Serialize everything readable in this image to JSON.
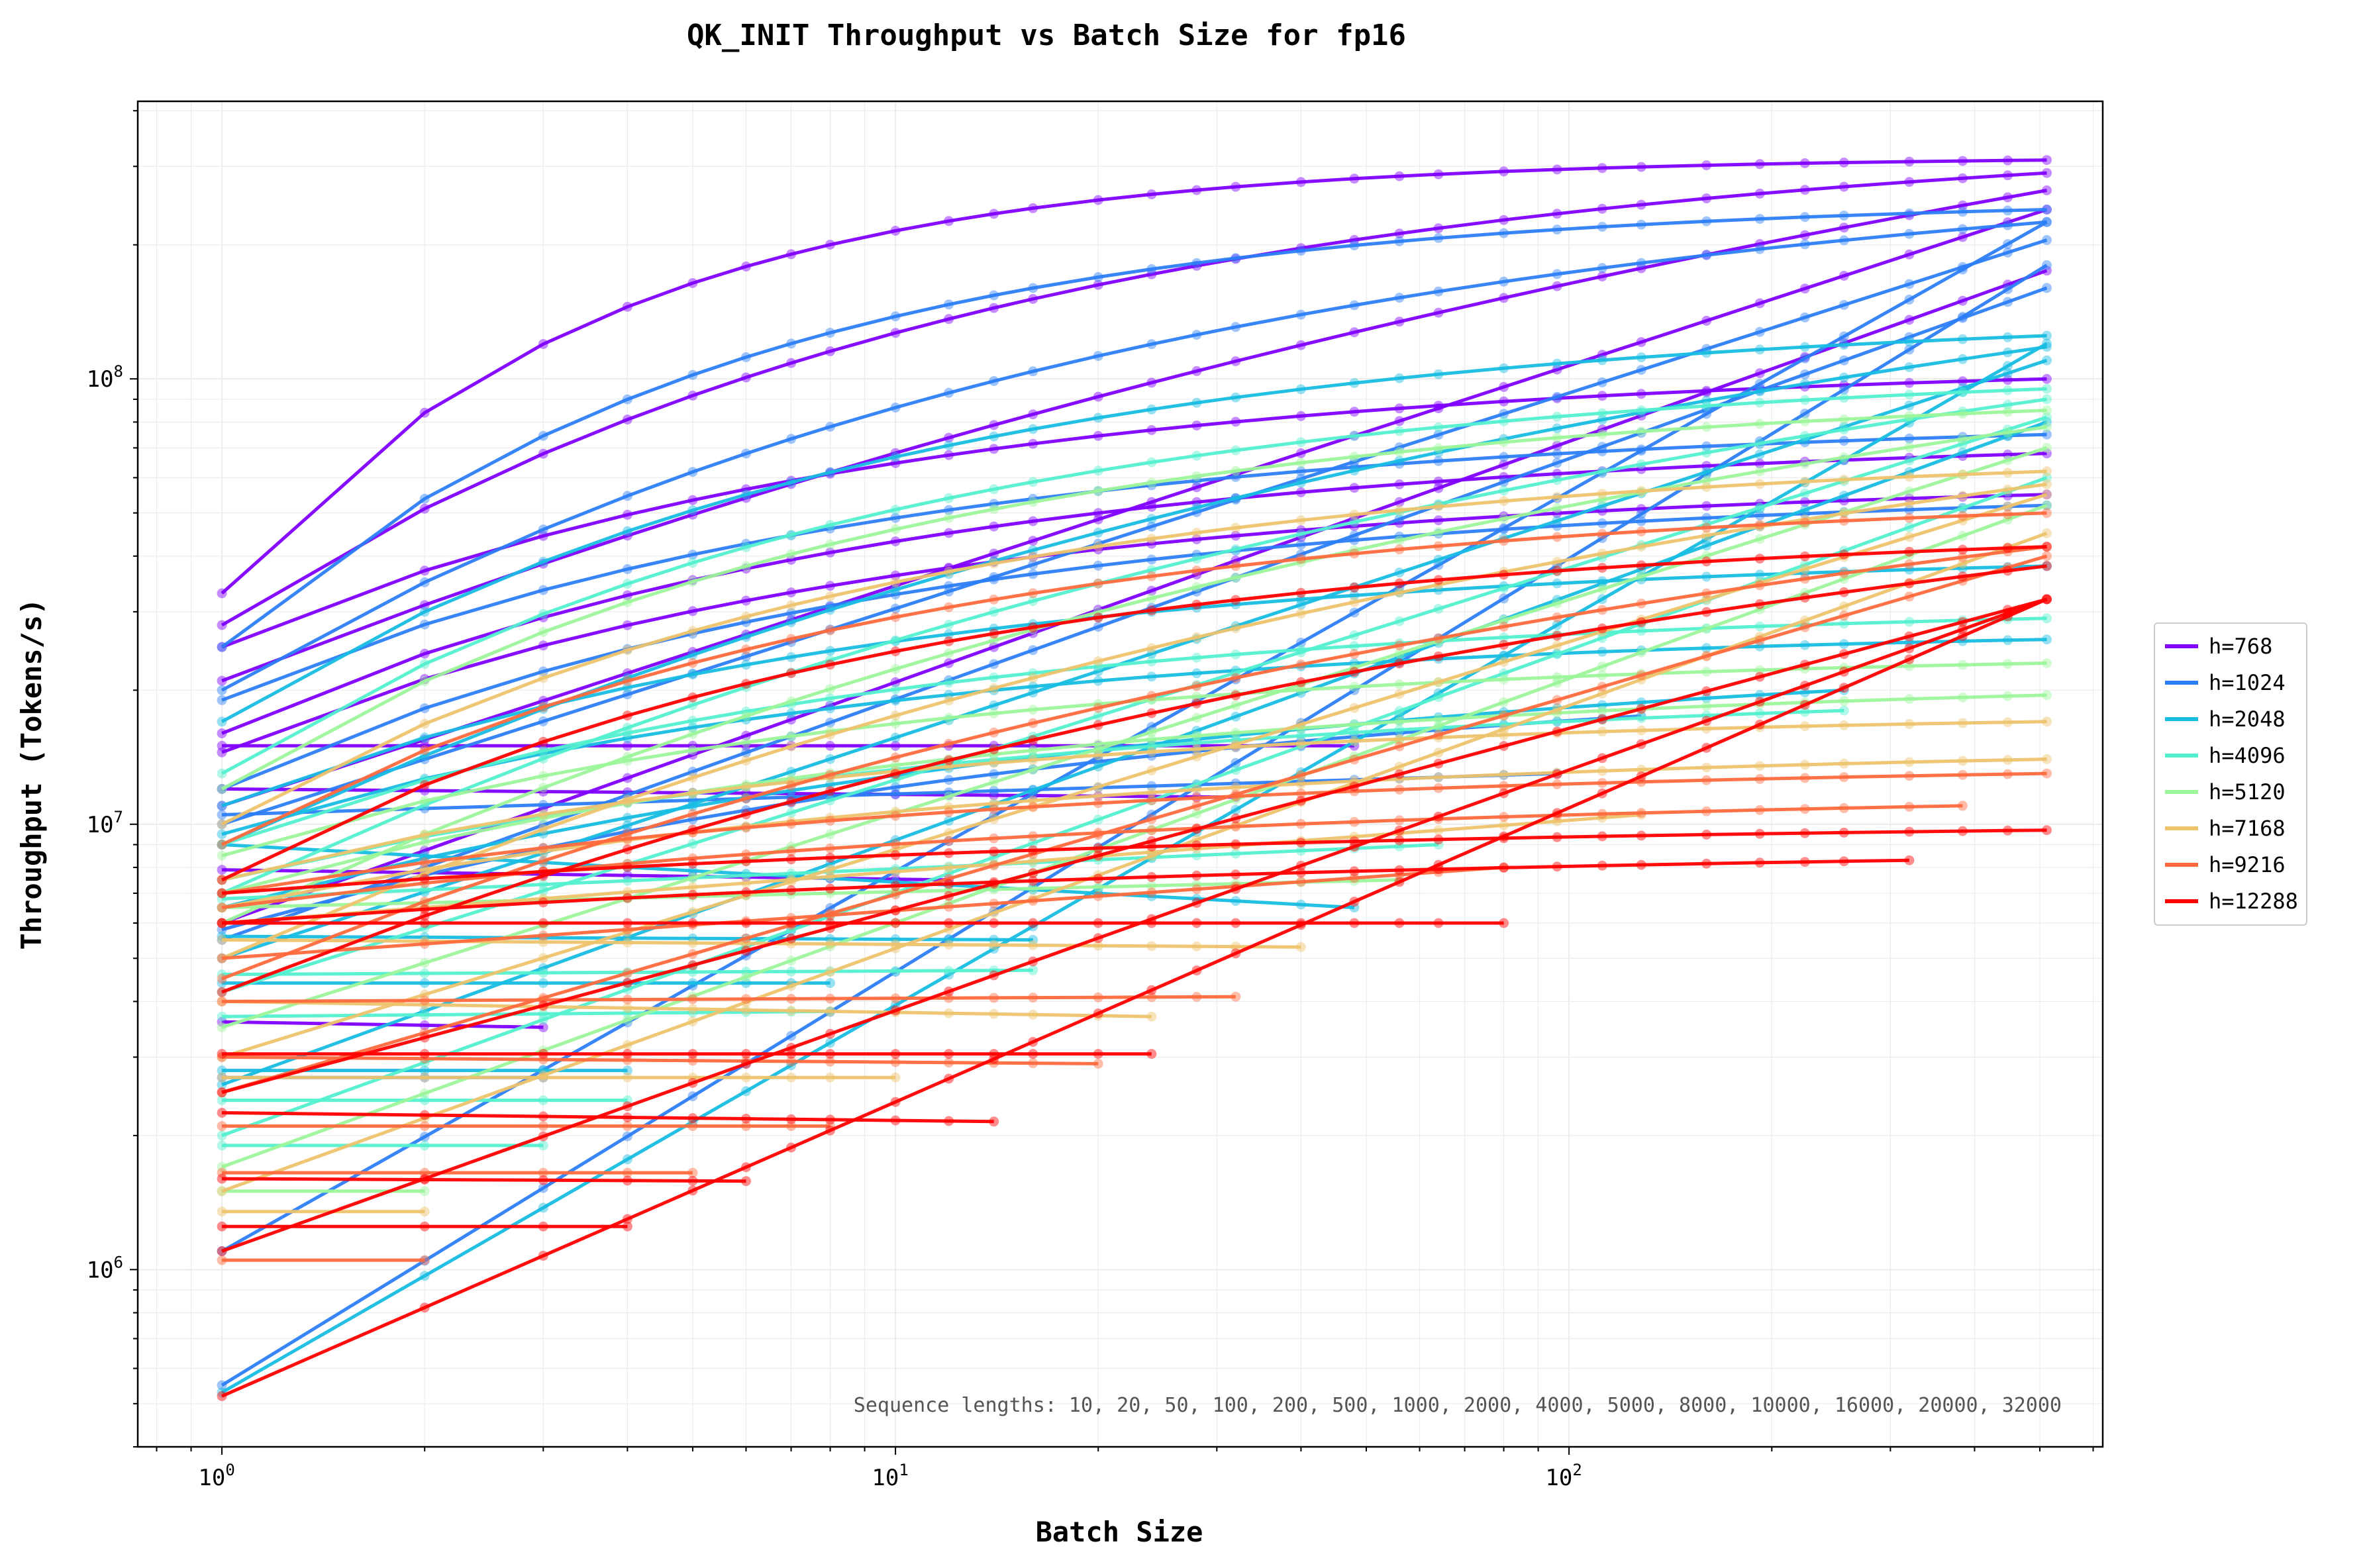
{
  "chart_data": {
    "type": "line",
    "title": "QK_INIT Throughput vs Batch Size for fp16",
    "xlabel": "Batch Size",
    "ylabel": "Throughput (Tokens/s)",
    "xscale": "log",
    "yscale": "log",
    "xlim": [
      0.75,
      620
    ],
    "ylim": [
      400000,
      420000000
    ],
    "x_ticks": [
      {
        "base": "10",
        "exp": "0",
        "value": 1
      },
      {
        "base": "10",
        "exp": "1",
        "value": 10
      },
      {
        "base": "10",
        "exp": "2",
        "value": 100
      }
    ],
    "y_ticks": [
      {
        "base": "10",
        "exp": "6",
        "value": 1000000
      },
      {
        "base": "10",
        "exp": "7",
        "value": 10000000
      },
      {
        "base": "10",
        "exp": "8",
        "value": 100000000
      }
    ],
    "grid": true,
    "legend_placement": "outside-right",
    "annotation": "Sequence lengths: 10, 20, 50, 100, 200, 500, 1000, 2000, 4000, 5000, 8000, 10000, 16000, 20000, 32000",
    "series": [
      {
        "name": "h=768",
        "color": "#8000ff",
        "lines": [
          {
            "x": [
              1,
              512
            ],
            "y": [
              33000000,
              310000000
            ],
            "curve": 0.6
          },
          {
            "x": [
              1,
              512
            ],
            "y": [
              28000000,
              290000000
            ],
            "curve": 0.3
          },
          {
            "x": [
              1,
              512
            ],
            "y": [
              21000000,
              265000000
            ],
            "curve": 0.1
          },
          {
            "x": [
              1,
              512
            ],
            "y": [
              11000000,
              240000000
            ],
            "curve": 0
          },
          {
            "x": [
              1,
              512
            ],
            "y": [
              6000000,
              175000000
            ],
            "curve": 0
          },
          {
            "x": [
              1,
              512
            ],
            "y": [
              25000000,
              100000000
            ],
            "curve": 0.35
          },
          {
            "x": [
              1,
              512
            ],
            "y": [
              16000000,
              68000000
            ],
            "curve": 0.35
          },
          {
            "x": [
              1,
              512
            ],
            "y": [
              14500000,
              55000000
            ],
            "curve": 0.35
          },
          {
            "x": [
              1,
              48
            ],
            "y": [
              15000000,
              15000000
            ],
            "curve": 0
          },
          {
            "x": [
              1,
              32
            ],
            "y": [
              12000000,
              11500000
            ],
            "curve": 0
          },
          {
            "x": [
              1,
              12
            ],
            "y": [
              7900000,
              7500000
            ],
            "curve": 0
          },
          {
            "x": [
              1,
              3
            ],
            "y": [
              3600000,
              3500000
            ],
            "curve": 0
          }
        ]
      },
      {
        "name": "h=1024",
        "color": "#2c7ef7",
        "lines": [
          {
            "x": [
              1,
              512
            ],
            "y": [
              25000000,
              240000000
            ],
            "curve": 0.45
          },
          {
            "x": [
              1,
              512
            ],
            "y": [
              20000000,
              225000000
            ],
            "curve": 0.25
          },
          {
            "x": [
              1,
              512
            ],
            "y": [
              10000000,
              205000000
            ],
            "curve": 0
          },
          {
            "x": [
              1,
              512
            ],
            "y": [
              5500000,
              160000000
            ],
            "curve": 0
          },
          {
            "x": [
              1,
              512
            ],
            "y": [
              19000000,
              75000000
            ],
            "curve": 0.35
          },
          {
            "x": [
              1,
              512
            ],
            "y": [
              12000000,
              52000000
            ],
            "curve": 0.35
          },
          {
            "x": [
              1,
              512
            ],
            "y": [
              1100000,
              225000000
            ],
            "curve": 0
          },
          {
            "x": [
              1,
              96
            ],
            "y": [
              10500000,
              13000000
            ],
            "curve": 0
          },
          {
            "x": [
              1,
              128
            ],
            "y": [
              5800000,
              17500000
            ],
            "curve": 0.2
          },
          {
            "x": [
              1,
              3
            ],
            "y": [
              2700000,
              2700000
            ],
            "curve": 0
          },
          {
            "x": [
              1,
              512
            ],
            "y": [
              550000,
              180000000
            ],
            "curve": 0
          }
        ]
      },
      {
        "name": "h=2048",
        "color": "#18bde3",
        "lines": [
          {
            "x": [
              1,
              512
            ],
            "y": [
              17000000,
              125000000
            ],
            "curve": 0.35
          },
          {
            "x": [
              1,
              512
            ],
            "y": [
              9000000,
              118000000
            ],
            "curve": 0.15
          },
          {
            "x": [
              1,
              512
            ],
            "y": [
              5000000,
              110000000
            ],
            "curve": 0
          },
          {
            "x": [
              1,
              512
            ],
            "y": [
              2600000,
              80000000
            ],
            "curve": 0
          },
          {
            "x": [
              1,
              512
            ],
            "y": [
              11000000,
              38000000
            ],
            "curve": 0.35
          },
          {
            "x": [
              1,
              512
            ],
            "y": [
              9500000,
              26000000
            ],
            "curve": 0.35
          },
          {
            "x": [
              1,
              256
            ],
            "y": [
              6500000,
              20000000
            ],
            "curve": 0.2
          },
          {
            "x": [
              1,
              48
            ],
            "y": [
              9000000,
              6500000
            ],
            "curve": 0
          },
          {
            "x": [
              1,
              16
            ],
            "y": [
              5600000,
              5500000
            ],
            "curve": 0
          },
          {
            "x": [
              1,
              8
            ],
            "y": [
              4400000,
              4400000
            ],
            "curve": 0
          },
          {
            "x": [
              1,
              4
            ],
            "y": [
              2800000,
              2800000
            ],
            "curve": 0
          },
          {
            "x": [
              1,
              512
            ],
            "y": [
              530000,
              120000000
            ],
            "curve": 0
          }
        ]
      },
      {
        "name": "h=4096",
        "color": "#52f0cf",
        "lines": [
          {
            "x": [
              1,
              512
            ],
            "y": [
              13000000,
              95000000
            ],
            "curve": 0.35
          },
          {
            "x": [
              1,
              512
            ],
            "y": [
              7000000,
              90000000
            ],
            "curve": 0.15
          },
          {
            "x": [
              1,
              512
            ],
            "y": [
              4200000,
              82000000
            ],
            "curve": 0
          },
          {
            "x": [
              1,
              512
            ],
            "y": [
              2000000,
              60000000
            ],
            "curve": 0
          },
          {
            "x": [
              1,
              512
            ],
            "y": [
              9000000,
              29000000
            ],
            "curve": 0.35
          },
          {
            "x": [
              1,
              256
            ],
            "y": [
              7500000,
              18000000
            ],
            "curve": 0.25
          },
          {
            "x": [
              1,
              64
            ],
            "y": [
              6800000,
              9000000
            ],
            "curve": 0
          },
          {
            "x": [
              1,
              16
            ],
            "y": [
              4600000,
              4700000
            ],
            "curve": 0
          },
          {
            "x": [
              1,
              8
            ],
            "y": [
              3700000,
              3800000
            ],
            "curve": 0
          },
          {
            "x": [
              1,
              4
            ],
            "y": [
              2400000,
              2400000
            ],
            "curve": 0
          },
          {
            "x": [
              1,
              3
            ],
            "y": [
              1900000,
              1900000
            ],
            "curve": 0
          }
        ]
      },
      {
        "name": "h=5120",
        "color": "#9cf69a",
        "lines": [
          {
            "x": [
              1,
              512
            ],
            "y": [
              12000000,
              85000000
            ],
            "curve": 0.35
          },
          {
            "x": [
              1,
              512
            ],
            "y": [
              6000000,
              78000000
            ],
            "curve": 0.15
          },
          {
            "x": [
              1,
              512
            ],
            "y": [
              3500000,
              70000000
            ],
            "curve": 0
          },
          {
            "x": [
              1,
              512
            ],
            "y": [
              1700000,
              52000000
            ],
            "curve": 0
          },
          {
            "x": [
              1,
              512
            ],
            "y": [
              8500000,
              23000000
            ],
            "curve": 0.35
          },
          {
            "x": [
              1,
              512
            ],
            "y": [
              7000000,
              19500000
            ],
            "curve": 0.3
          },
          {
            "x": [
              1,
              56
            ],
            "y": [
              6500000,
              7500000
            ],
            "curve": 0
          },
          {
            "x": [
              1,
              2
            ],
            "y": [
              1500000,
              1500000
            ],
            "curve": 0
          }
        ]
      },
      {
        "name": "h=7168",
        "color": "#edc36d",
        "lines": [
          {
            "x": [
              1,
              512
            ],
            "y": [
              10000000,
              62000000
            ],
            "curve": 0.35
          },
          {
            "x": [
              1,
              512
            ],
            "y": [
              5000000,
              58000000
            ],
            "curve": 0.15
          },
          {
            "x": [
              1,
              512
            ],
            "y": [
              3000000,
              55000000
            ],
            "curve": 0
          },
          {
            "x": [
              1,
              512
            ],
            "y": [
              1500000,
              45000000
            ],
            "curve": 0
          },
          {
            "x": [
              1,
              512
            ],
            "y": [
              7500000,
              17000000
            ],
            "curve": 0.35
          },
          {
            "x": [
              1,
              512
            ],
            "y": [
              6500000,
              14000000
            ],
            "curve": 0.3
          },
          {
            "x": [
              1,
              128
            ],
            "y": [
              6000000,
              10500000
            ],
            "curve": 0
          },
          {
            "x": [
              1,
              40
            ],
            "y": [
              5500000,
              5300000
            ],
            "curve": 0
          },
          {
            "x": [
              1,
              24
            ],
            "y": [
              4000000,
              3700000
            ],
            "curve": 0
          },
          {
            "x": [
              1,
              10
            ],
            "y": [
              2700000,
              2700000
            ],
            "curve": 0
          },
          {
            "x": [
              1,
              2
            ],
            "y": [
              1350000,
              1350000
            ],
            "curve": 0
          }
        ]
      },
      {
        "name": "h=9216",
        "color": "#ff6a3d",
        "lines": [
          {
            "x": [
              1,
              512
            ],
            "y": [
              9000000,
              50000000
            ],
            "curve": 0.35
          },
          {
            "x": [
              1,
              512
            ],
            "y": [
              4500000,
              42000000
            ],
            "curve": 0.15
          },
          {
            "x": [
              1,
              512
            ],
            "y": [
              2500000,
              40000000
            ],
            "curve": 0
          },
          {
            "x": [
              1,
              512
            ],
            "y": [
              7000000,
              13000000
            ],
            "curve": 0.3
          },
          {
            "x": [
              1,
              384
            ],
            "y": [
              6500000,
              11000000
            ],
            "curve": 0.25
          },
          {
            "x": [
              1,
              80
            ],
            "y": [
              5000000,
              8000000
            ],
            "curve": 0
          },
          {
            "x": [
              1,
              32
            ],
            "y": [
              4000000,
              4100000
            ],
            "curve": 0
          },
          {
            "x": [
              1,
              20
            ],
            "y": [
              3000000,
              2900000
            ],
            "curve": 0
          },
          {
            "x": [
              1,
              8
            ],
            "y": [
              2100000,
              2100000
            ],
            "curve": 0
          },
          {
            "x": [
              1,
              5
            ],
            "y": [
              1650000,
              1650000
            ],
            "curve": 0
          },
          {
            "x": [
              1,
              2
            ],
            "y": [
              1050000,
              1050000
            ],
            "curve": 0
          }
        ]
      },
      {
        "name": "h=12288",
        "color": "#ff0000",
        "lines": [
          {
            "x": [
              1,
              512
            ],
            "y": [
              7500000,
              42000000
            ],
            "curve": 0.35
          },
          {
            "x": [
              1,
              512
            ],
            "y": [
              4200000,
              38000000
            ],
            "curve": 0.15
          },
          {
            "x": [
              1,
              512
            ],
            "y": [
              2500000,
              32000000
            ],
            "curve": 0
          },
          {
            "x": [
              1,
              512
            ],
            "y": [
              1100000,
              32000000
            ],
            "curve": 0
          },
          {
            "x": [
              1,
              512
            ],
            "y": [
              7000000,
              9700000
            ],
            "curve": 0.25
          },
          {
            "x": [
              1,
              320
            ],
            "y": [
              6000000,
              8300000
            ],
            "curve": 0.2
          },
          {
            "x": [
              1,
              80
            ],
            "y": [
              6000000,
              6000000
            ],
            "curve": 0
          },
          {
            "x": [
              1,
              24
            ],
            "y": [
              3050000,
              3050000
            ],
            "curve": 0
          },
          {
            "x": [
              1,
              14
            ],
            "y": [
              2250000,
              2150000
            ],
            "curve": 0
          },
          {
            "x": [
              1,
              6
            ],
            "y": [
              1600000,
              1580000
            ],
            "curve": 0
          },
          {
            "x": [
              1,
              4
            ],
            "y": [
              1250000,
              1250000
            ],
            "curve": 0
          },
          {
            "x": [
              1,
              512
            ],
            "y": [
              520000,
              32000000
            ],
            "curve": 0
          }
        ]
      }
    ]
  }
}
